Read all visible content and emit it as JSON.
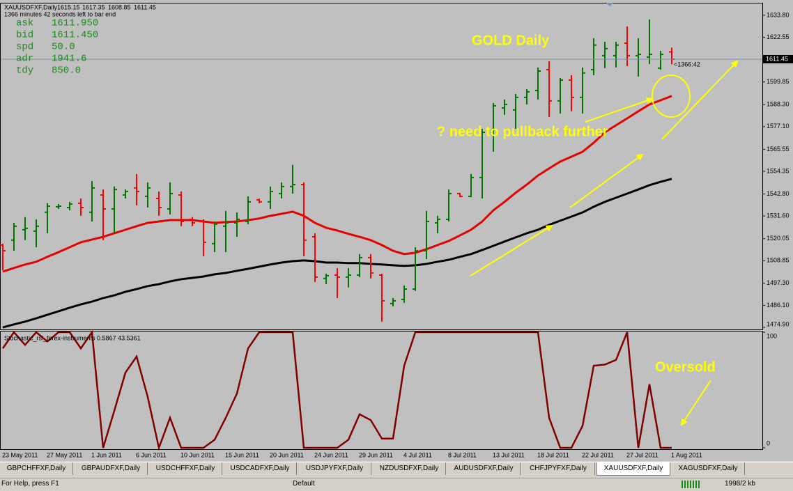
{
  "chart_data": [
    {
      "type": "ohlc",
      "title": "XAUUSDFXF,Daily",
      "categories": [
        "23 May 2011",
        null,
        null,
        null,
        "27 May 2011",
        null,
        null,
        null,
        "1 Jun 2011",
        null,
        null,
        null,
        "6 Jun 2011",
        null,
        null,
        null,
        "10 Jun 2011",
        null,
        null,
        null,
        "15 Jun 2011",
        null,
        null,
        null,
        "20 Jun 2011",
        null,
        null,
        null,
        "24 Jun 2011",
        null,
        null,
        null,
        "29 Jun 2011",
        null,
        null,
        null,
        "4 Jul 2011",
        null,
        null,
        null,
        "8 Jul 2011",
        null,
        null,
        null,
        "13 Jul 2011",
        null,
        null,
        null,
        "18 Jul 2011",
        null,
        null,
        null,
        "22 Jul 2011",
        null,
        null,
        null,
        "27 Jul 2011",
        null,
        null,
        null,
        "1 Aug 2011"
      ],
      "open": [
        1516.8,
        1519.3,
        1524.6,
        1523.9,
        1533.5,
        1536.3,
        1535.9,
        1538.1,
        1533.5,
        1542.3,
        1535.2,
        1542.3,
        1545.9,
        1541.6,
        1540.5,
        1535.2,
        1542.3,
        1529.9,
        1528.8,
        1517.5,
        1526.4,
        1528.1,
        1528.8,
        1539.8,
        1538.8,
        1543.0,
        1546.6,
        1547.6,
        1521.0,
        1499.8,
        1501.5,
        1500.5,
        1501.5,
        1510.4,
        1501.5,
        1487.0,
        1489.1,
        1494.4,
        1513.9,
        1528.1,
        1529.9,
        1543.0,
        1541.6,
        1551.2,
        1574.2,
        1586.6,
        1585.6,
        1592.0,
        1595.5,
        1606.1,
        1590.2,
        1600.8,
        1592.0,
        1606.1,
        1613.2,
        1613.2,
        1619.6,
        1613.2,
        1612.5,
        1606.9,
        1615.15
      ],
      "high": [
        1517.5,
        1528.1,
        1531.0,
        1529.9,
        1538.1,
        1537.7,
        1538.8,
        1540.5,
        1549.4,
        1545.1,
        1546.6,
        1545.1,
        1553.0,
        1548.7,
        1544.1,
        1548.7,
        1544.1,
        1531.0,
        1529.9,
        1528.8,
        1534.2,
        1533.4,
        1541.6,
        1540.5,
        1546.6,
        1548.7,
        1557.6,
        1548.7,
        1522.8,
        1502.2,
        1505.1,
        1505.1,
        1512.2,
        1512.2,
        1502.2,
        1489.8,
        1496.2,
        1515.7,
        1534.2,
        1531.7,
        1545.1,
        1543.4,
        1553.0,
        1576.0,
        1589.1,
        1590.9,
        1593.7,
        1596.2,
        1607.2,
        1610.4,
        1601.9,
        1603.3,
        1607.2,
        1622.1,
        1620.3,
        1620.3,
        1628.1,
        1622.1,
        1631.7,
        1615.7,
        1617.35
      ],
      "low": [
        1504.0,
        1513.9,
        1519.3,
        1515.7,
        1522.8,
        1535.2,
        1534.5,
        1531.7,
        1528.8,
        1519.3,
        1522.8,
        1540.5,
        1537.0,
        1535.9,
        1531.7,
        1532.4,
        1526.4,
        1526.4,
        1511.1,
        1513.2,
        1513.2,
        1521.0,
        1527.4,
        1538.1,
        1535.2,
        1540.5,
        1543.0,
        1511.1,
        1498.0,
        1496.9,
        1489.8,
        1495.2,
        1500.5,
        1499.8,
        1477.8,
        1485.6,
        1487.4,
        1493.4,
        1509.7,
        1522.8,
        1528.8,
        1541.2,
        1541.2,
        1540.5,
        1564.3,
        1583.1,
        1576.0,
        1588.4,
        1590.9,
        1582.0,
        1583.8,
        1584.9,
        1583.8,
        1603.3,
        1606.9,
        1607.2,
        1607.9,
        1602.6,
        1609.0,
        1606.1,
        1608.85
      ],
      "close": [
        1513.9,
        1526.4,
        1525.3,
        1526.4,
        1536.6,
        1536.6,
        1537.7,
        1535.9,
        1545.9,
        1535.2,
        1545.1,
        1544.1,
        1544.1,
        1545.9,
        1535.9,
        1543.0,
        1528.8,
        1528.1,
        1518.2,
        1527.4,
        1528.1,
        1529.9,
        1538.8,
        1538.8,
        1544.1,
        1546.6,
        1547.6,
        1519.3,
        1500.5,
        1501.2,
        1500.5,
        1501.5,
        1510.4,
        1502.6,
        1488.4,
        1488.4,
        1494.4,
        1513.9,
        1528.8,
        1529.9,
        1543.0,
        1541.6,
        1551.2,
        1574.2,
        1587.7,
        1588.4,
        1592.0,
        1594.8,
        1605.4,
        1590.2,
        1600.8,
        1592.0,
        1604.4,
        1618.6,
        1616.8,
        1618.6,
        1613.2,
        1613.9,
        1613.9,
        1613.9,
        1611.45
      ],
      "up_color": "#007800",
      "down_color": "#ff0000",
      "lines": [
        {
          "color": "#e60000",
          "values": [
            1503.3,
            1505.1,
            1506.9,
            1508.3,
            1510.8,
            1513.2,
            1515.7,
            1518.2,
            1519.6,
            1521.0,
            1522.8,
            1524.6,
            1526.4,
            1528.1,
            1528.8,
            1529.5,
            1529.5,
            1529.5,
            1528.8,
            1528.1,
            1528.5,
            1528.8,
            1529.5,
            1530.3,
            1531.7,
            1532.7,
            1533.8,
            1531.7,
            1528.1,
            1525.6,
            1524.2,
            1522.5,
            1521.0,
            1519.3,
            1516.8,
            1513.9,
            1512.2,
            1512.9,
            1514.7,
            1516.8,
            1518.9,
            1521.7,
            1524.6,
            1528.8,
            1534.5,
            1538.8,
            1543.4,
            1547.6,
            1552.2,
            1555.8,
            1559.3,
            1561.8,
            1564.3,
            1568.9,
            1574.2,
            1577.8,
            1581.3,
            1584.9,
            1588.4,
            1590.5,
            1592.7
          ]
        },
        {
          "color": "#000000",
          "values": [
            1474.9,
            1476.4,
            1477.8,
            1479.5,
            1481.3,
            1483.1,
            1484.9,
            1486.6,
            1488.0,
            1489.8,
            1491.2,
            1493.0,
            1494.4,
            1495.9,
            1496.9,
            1498.3,
            1499.4,
            1500.1,
            1500.8,
            1501.9,
            1502.6,
            1503.7,
            1504.7,
            1505.8,
            1506.9,
            1507.9,
            1508.6,
            1509.0,
            1508.6,
            1507.9,
            1507.9,
            1507.6,
            1507.6,
            1507.2,
            1506.9,
            1506.5,
            1506.2,
            1506.5,
            1507.2,
            1508.3,
            1509.3,
            1510.8,
            1512.2,
            1514.3,
            1516.4,
            1518.6,
            1520.7,
            1522.8,
            1524.6,
            1527.1,
            1529.2,
            1531.3,
            1533.4,
            1536.3,
            1538.8,
            1540.9,
            1543.0,
            1545.1,
            1547.3,
            1549.0,
            1550.5
          ]
        }
      ],
      "ylim": [
        1474.2,
        1639.8
      ],
      "yticks": [
        {
          "value": 1474.9,
          "label": "1474.90"
        },
        {
          "value": 1486.1,
          "label": "1486.10"
        },
        {
          "value": 1497.3,
          "label": "1497.30"
        },
        {
          "value": 1508.85,
          "label": "1508.85"
        },
        {
          "value": 1520.05,
          "label": "1520.05"
        },
        {
          "value": 1531.6,
          "label": "1531.60"
        },
        {
          "value": 1542.8,
          "label": "1542.80"
        },
        {
          "value": 1554.35,
          "label": "1554.35"
        },
        {
          "value": 1565.55,
          "label": "1565.55"
        },
        {
          "value": 1577.1,
          "label": "1577.10"
        },
        {
          "value": 1588.3,
          "label": "1588.30"
        },
        {
          "value": 1599.85,
          "label": "1599.85"
        },
        {
          "value": 1622.55,
          "label": "1622.55"
        },
        {
          "value": 1633.8,
          "label": "1633.80"
        }
      ],
      "price_line_color": "#7890a8",
      "annotations": [
        "GOLD Daily",
        "? need to pullback further"
      ]
    },
    {
      "type": "line",
      "title": "Stochastic_rsi_forex-instruments 0.5867 43.5361",
      "color": "#800000",
      "values": [
        86,
        100,
        89,
        100,
        92,
        100,
        100,
        86,
        100,
        0,
        32,
        65,
        79,
        44,
        0,
        26,
        0,
        0,
        0,
        7,
        26,
        47,
        86,
        100,
        100,
        100,
        100,
        0,
        0,
        0,
        0,
        7,
        29,
        24,
        8,
        8,
        71,
        100,
        100,
        100,
        100,
        100,
        100,
        100,
        100,
        100,
        100,
        100,
        100,
        26,
        0,
        0,
        19,
        71,
        72,
        76,
        100,
        0,
        55,
        0,
        0
      ],
      "ylim": [
        0,
        100
      ],
      "yticks": [
        0,
        100
      ],
      "annotations": [
        "Oversold"
      ]
    }
  ],
  "countdown": "1366 minutes 42 seconds left to bar end",
  "bar_timer": "<1366:42",
  "info": [
    {
      "label": "ask",
      "value": "1611.950"
    },
    {
      "label": "bid",
      "value": "1611.450"
    },
    {
      "label": "spd",
      "value": "50.0"
    },
    {
      "label": "adr",
      "value": "1941.6"
    },
    {
      "label": "tdy",
      "value": "850.0"
    }
  ],
  "tabs": [
    "GBPCHFFXF,Daily",
    "GBPAUDFXF,Daily",
    "USDCHFFXF,Daily",
    "USDCADFXF,Daily",
    "USDJPYFXF,Daily",
    "NZDUSDFXF,Daily",
    "AUDUSDFXF,Daily",
    "CHFJPYFXF,Daily",
    "XAUUSDFXF,Daily",
    "XAGUSDFXF,Daily"
  ],
  "active_tab": 8,
  "status_bar": {
    "help": "For Help, press F1",
    "profile": "Default",
    "traffic": "1998/2 kb"
  }
}
